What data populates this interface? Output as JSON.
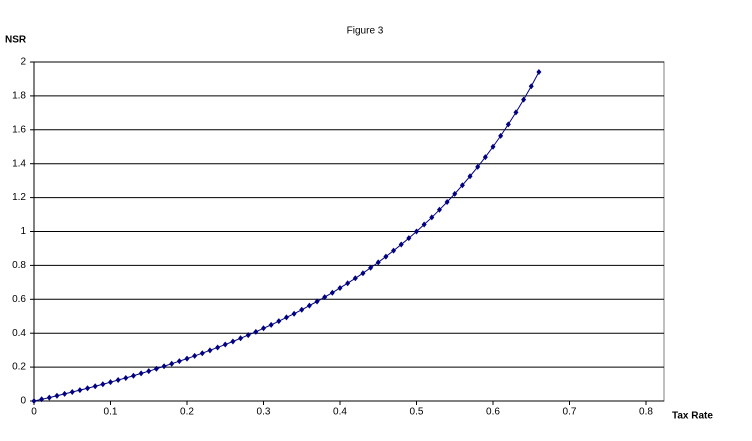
{
  "chart_data": {
    "type": "line",
    "title": "Figure 3",
    "ylabel": "NSR",
    "xlabel": "Tax Rate",
    "x": [
      0,
      0.01,
      0.02,
      0.03,
      0.04,
      0.05,
      0.06,
      0.07,
      0.08,
      0.09,
      0.1,
      0.11,
      0.12,
      0.13,
      0.14,
      0.15,
      0.16,
      0.17,
      0.18,
      0.19,
      0.2,
      0.21,
      0.22,
      0.23,
      0.24,
      0.25,
      0.26,
      0.27,
      0.28,
      0.29,
      0.3,
      0.31,
      0.32,
      0.33,
      0.34,
      0.35,
      0.36,
      0.37,
      0.38,
      0.39,
      0.4,
      0.41,
      0.42,
      0.43,
      0.44,
      0.45,
      0.46,
      0.47,
      0.48,
      0.49,
      0.5,
      0.51,
      0.52,
      0.53,
      0.54,
      0.55,
      0.56,
      0.57,
      0.58,
      0.59,
      0.6,
      0.61,
      0.62,
      0.63,
      0.64,
      0.65,
      0.66
    ],
    "series": [
      {
        "color": "#000080",
        "values": [
          0,
          0.01,
          0.02,
          0.031,
          0.042,
          0.053,
          0.064,
          0.075,
          0.087,
          0.099,
          0.111,
          0.124,
          0.136,
          0.149,
          0.163,
          0.176,
          0.19,
          0.205,
          0.22,
          0.235,
          0.25,
          0.266,
          0.282,
          0.299,
          0.316,
          0.333,
          0.351,
          0.37,
          0.389,
          0.408,
          0.429,
          0.449,
          0.471,
          0.493,
          0.515,
          0.538,
          0.563,
          0.587,
          0.613,
          0.639,
          0.667,
          0.695,
          0.724,
          0.754,
          0.786,
          0.818,
          0.852,
          0.887,
          0.923,
          0.961,
          1,
          1.041,
          1.083,
          1.128,
          1.174,
          1.222,
          1.273,
          1.326,
          1.381,
          1.439,
          1.5,
          1.564,
          1.632,
          1.703,
          1.778,
          1.857,
          1.941
        ]
      }
    ],
    "xlim": [
      0,
      0.8
    ],
    "ylim": [
      0,
      2
    ],
    "xticks": [
      0,
      0.1,
      0.2,
      0.3,
      0.4,
      0.5,
      0.6,
      0.7,
      0.8
    ],
    "yticks": [
      0,
      0.2,
      0.4,
      0.6,
      0.8,
      1,
      1.2,
      1.4,
      1.6,
      1.8,
      2
    ],
    "grid": true
  }
}
